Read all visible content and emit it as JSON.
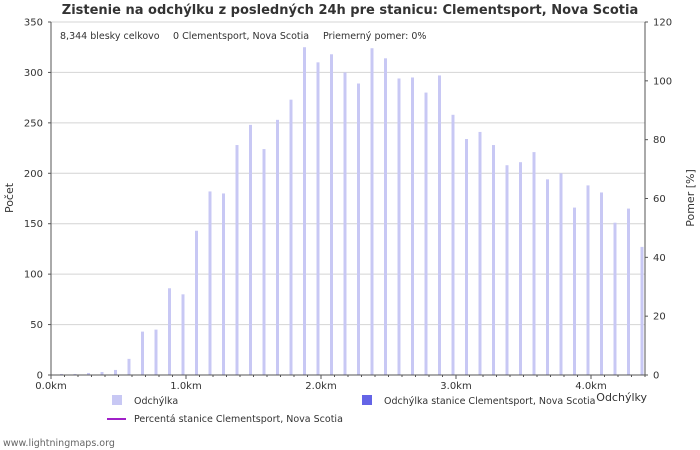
{
  "chart_data": {
    "type": "bar",
    "title": "Zistenie na odchýlku z posledných 24h pre stanicu: Clementsport, Nova Scotia",
    "xlabel": "Odchýlky",
    "ylabel": "Počet",
    "ylabel_right": "Pomer [%]",
    "xlim": [
      0,
      4.4
    ],
    "ylim": [
      0,
      350
    ],
    "ylim_right": [
      0,
      120
    ],
    "y_ticks": [
      0,
      50,
      100,
      150,
      200,
      250,
      300,
      350
    ],
    "y_right_ticks": [
      0,
      20,
      40,
      60,
      80,
      100,
      120
    ],
    "x_ticks": [
      {
        "value": 0,
        "label": "0.0km"
      },
      {
        "value": 1.0,
        "label": "1.0km"
      },
      {
        "value": 2.0,
        "label": "2.0km"
      },
      {
        "value": 3.0,
        "label": "3.0km"
      },
      {
        "value": 4.0,
        "label": "4.0km"
      }
    ],
    "info": {
      "total": "8,344 blesky celkovo",
      "station": "0 Clementsport, Nova Scotia",
      "avg_ratio": "Priemerný pomer: 0%"
    },
    "series": [
      {
        "name": "Odchýlka",
        "color": "#c8c8f4",
        "x": [
          0.1,
          0.2,
          0.3,
          0.4,
          0.5,
          0.6,
          0.7,
          0.8,
          0.9,
          1.0,
          1.1,
          1.2,
          1.3,
          1.4,
          1.5,
          1.6,
          1.7,
          1.8,
          1.9,
          2.0,
          2.1,
          2.2,
          2.3,
          2.4,
          2.5,
          2.6,
          2.7,
          2.8,
          2.9,
          3.0,
          3.1,
          3.2,
          3.3,
          3.4,
          3.5,
          3.6,
          3.7,
          3.8,
          3.9,
          4.0,
          4.1,
          4.2,
          4.3,
          4.4
        ],
        "values": [
          1,
          1,
          2,
          3,
          5,
          16,
          43,
          45,
          86,
          80,
          143,
          182,
          180,
          228,
          248,
          224,
          253,
          273,
          325,
          310,
          318,
          300,
          289,
          324,
          314,
          294,
          295,
          280,
          297,
          258,
          234,
          241,
          228,
          208,
          211,
          221,
          194,
          200,
          166,
          188,
          181,
          151,
          165,
          127
        ]
      },
      {
        "name": "Odchýlka stanice Clementsport, Nova Scotia",
        "color": "#6464e6",
        "values": []
      },
      {
        "name": "Percentá stanice Clementsport, Nova Scotia",
        "color": "#a020c8",
        "type": "line",
        "values": []
      }
    ],
    "grid": true
  },
  "footer": "www.lightningmaps.org"
}
